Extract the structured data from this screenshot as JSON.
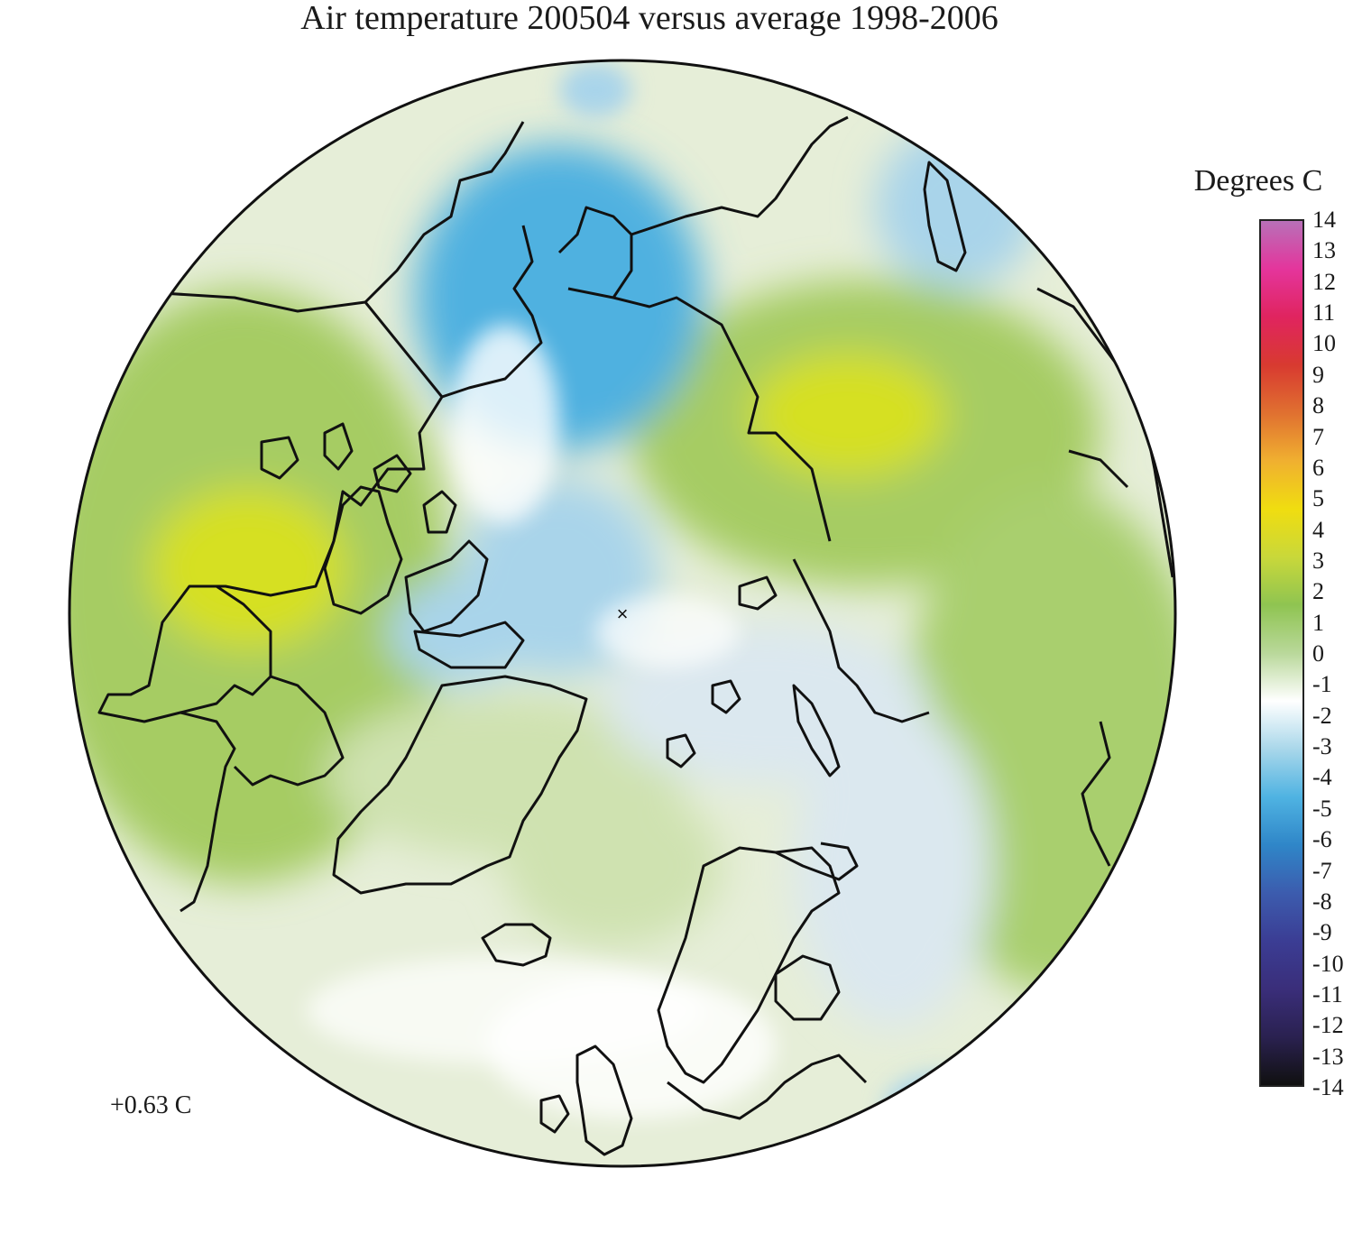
{
  "title": "Air temperature 200504 versus average 1998-2006",
  "legend": {
    "title": "Degrees C",
    "ticks": [
      "14",
      "13",
      "12",
      "11",
      "10",
      "9",
      "8",
      "7",
      "6",
      "5",
      "4",
      "3",
      "2",
      "1",
      "0",
      "-1",
      "-2",
      "-3",
      "-4",
      "-5",
      "-6",
      "-7",
      "-8",
      "-9",
      "-10",
      "-11",
      "-12",
      "-13",
      "-14"
    ],
    "range": [
      -14,
      14
    ],
    "colors": [
      "#101010",
      "#2a2150",
      "#3a2e7a",
      "#3b3d94",
      "#3c5cae",
      "#2f86c8",
      "#4fb3e2",
      "#a9d7ea",
      "#ffffff",
      "#b9d89a",
      "#8fc451",
      "#c9d83a",
      "#f0dd10",
      "#f0b030",
      "#e07030",
      "#d83a30",
      "#e0245f",
      "#e4359c",
      "#b870b8"
    ]
  },
  "mean_anomaly": "+0.63 C",
  "map": {
    "projection": "north-polar-stereographic",
    "center_mark": "×",
    "colors": {
      "ocean_background": "#e6eed8",
      "warm_strong": "#d6e024",
      "warm": "#a6cc64",
      "warm_light": "#cfe2b0",
      "neutral": "#ffffff",
      "cool_light": "#dbe8ef",
      "cool": "#a9d4ea",
      "cold": "#4fb1e0",
      "coastline": "#111111"
    },
    "regions": [
      "north-america",
      "greenland",
      "canadian-archipelago",
      "scandinavia",
      "siberia",
      "alaska",
      "chukotka",
      "iceland",
      "british-isles",
      "svalbard",
      "novaya-zemlya"
    ]
  }
}
